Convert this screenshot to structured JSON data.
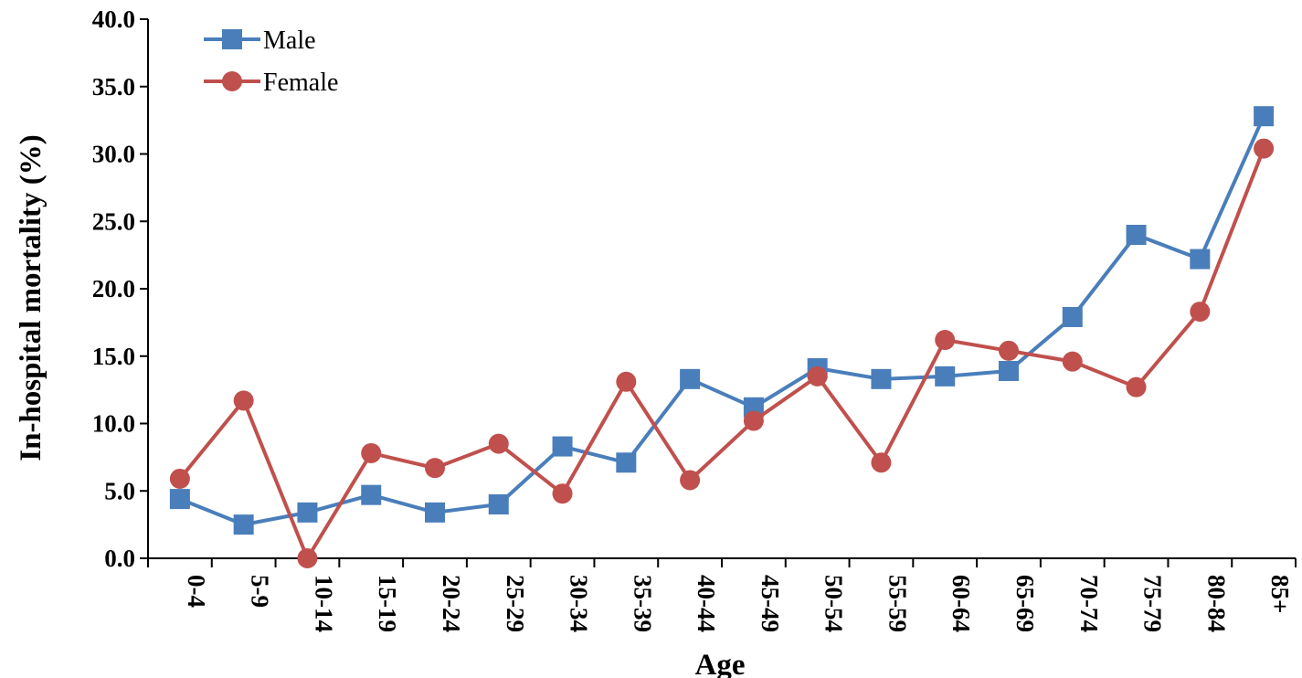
{
  "chart_data": {
    "type": "line",
    "categories": [
      "0-4",
      "5-9",
      "10-14",
      "15-19",
      "20-24",
      "25-29",
      "30-34",
      "35-39",
      "40-44",
      "45-49",
      "50-54",
      "55-59",
      "60-64",
      "65-69",
      "70-74",
      "75-79",
      "80-84",
      "85+"
    ],
    "series": [
      {
        "name": "Male",
        "color": "#4a7ebb",
        "marker": "square",
        "values": [
          4.4,
          2.5,
          3.4,
          4.7,
          3.4,
          4.0,
          8.3,
          7.1,
          13.3,
          11.2,
          14.1,
          13.3,
          13.5,
          13.9,
          17.9,
          24.0,
          22.2,
          32.8
        ]
      },
      {
        "name": "Female",
        "color": "#c0504d",
        "marker": "circle",
        "values": [
          5.9,
          11.7,
          0.0,
          7.8,
          6.7,
          8.5,
          4.8,
          13.1,
          5.8,
          10.2,
          13.5,
          7.1,
          16.2,
          15.4,
          14.6,
          12.7,
          18.3,
          30.4
        ]
      }
    ],
    "title": "",
    "xlabel": "Age",
    "ylabel": "In-hospital mortality (%)",
    "ylim": [
      0,
      40
    ],
    "yticks": [
      "0.0",
      "5.0",
      "10.0",
      "15.0",
      "20.0",
      "25.0",
      "30.0",
      "35.0",
      "40.0"
    ],
    "grid": false,
    "legend_position": "top-left"
  }
}
